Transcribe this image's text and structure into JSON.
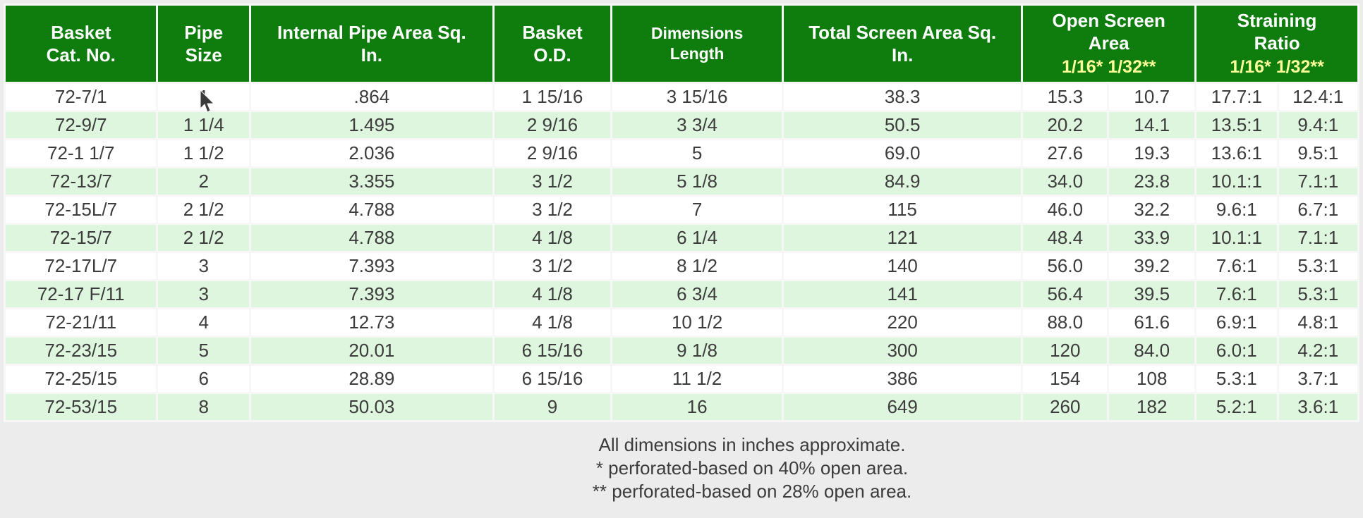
{
  "colors": {
    "header_bg": "#0e7d0e",
    "header_text": "#ffffff",
    "subheader_text": "#ffff99",
    "row_bg": "#ffffff",
    "row_alt_bg": "#ddf6dd",
    "cell_text": "#3c3c3c",
    "page_bg": "#ececec"
  },
  "header": {
    "columns": [
      "Basket Cat. No.",
      "Pipe Size",
      "Internal Pipe Area Sq. In.",
      "Basket O.D.",
      "Dimensions Length",
      "Total Screen Area Sq. In."
    ],
    "groups": [
      {
        "label": "Open Screen Area",
        "sub": "1/16* 1/32**"
      },
      {
        "label": "Straining Ratio",
        "sub": "1/16* 1/32**"
      }
    ]
  },
  "rows": [
    [
      "72-7/1",
      "1",
      ".864",
      "1 15/16",
      "3 15/16",
      "38.3",
      "15.3",
      "10.7",
      "17.7:1",
      "12.4:1"
    ],
    [
      "72-9/7",
      "1 1/4",
      "1.495",
      "2 9/16",
      "3 3/4",
      "50.5",
      "20.2",
      "14.1",
      "13.5:1",
      "9.4:1"
    ],
    [
      "72-1 1/7",
      "1 1/2",
      "2.036",
      "2 9/16",
      "5",
      "69.0",
      "27.6",
      "19.3",
      "13.6:1",
      "9.5:1"
    ],
    [
      "72-13/7",
      "2",
      "3.355",
      "3 1/2",
      "5 1/8",
      "84.9",
      "34.0",
      "23.8",
      "10.1:1",
      "7.1:1"
    ],
    [
      "72-15L/7",
      "2 1/2",
      "4.788",
      "3 1/2",
      "7",
      "115",
      "46.0",
      "32.2",
      "9.6:1",
      "6.7:1"
    ],
    [
      "72-15/7",
      "2 1/2",
      "4.788",
      "4 1/8",
      "6 1/4",
      "121",
      "48.4",
      "33.9",
      "10.1:1",
      "7.1:1"
    ],
    [
      "72-17L/7",
      "3",
      "7.393",
      "3 1/2",
      "8 1/2",
      "140",
      "56.0",
      "39.2",
      "7.6:1",
      "5.3:1"
    ],
    [
      "72-17 F/11",
      "3",
      "7.393",
      "4 1/8",
      "6 3/4",
      "141",
      "56.4",
      "39.5",
      "7.6:1",
      "5.3:1"
    ],
    [
      "72-21/11",
      "4",
      "12.73",
      "4 1/8",
      "10 1/2",
      "220",
      "88.0",
      "61.6",
      "6.9:1",
      "4.8:1"
    ],
    [
      "72-23/15",
      "5",
      "20.01",
      "6 15/16",
      "9 1/8",
      "300",
      "120",
      "84.0",
      "6.0:1",
      "4.2:1"
    ],
    [
      "72-25/15",
      "6",
      "28.89",
      "6 15/16",
      "11 1/2",
      "386",
      "154",
      "108",
      "5.3:1",
      "3.7:1"
    ],
    [
      "72-53/15",
      "8",
      "50.03",
      "9",
      "16",
      "649",
      "260",
      "182",
      "5.2:1",
      "3.6:1"
    ]
  ],
  "footnotes": [
    "All dimensions in inches approximate.",
    "* perforated-based on 40% open area.",
    "** perforated-based on 28% open area."
  ]
}
